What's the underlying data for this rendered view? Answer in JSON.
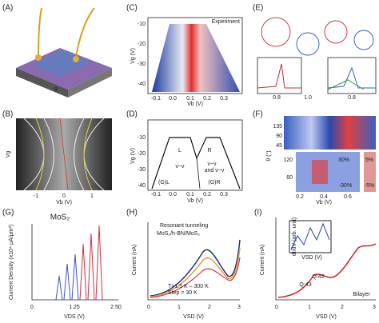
{
  "panels": [
    {
      "label": "(A)",
      "texts": [
        "θ"
      ]
    },
    {
      "label": "(B)",
      "texts": [
        "Vg",
        "-1",
        "0",
        "1",
        "Vb (V)"
      ]
    },
    {
      "label": "(C)",
      "texts": [
        "Experiment",
        "-10",
        "-20",
        "-30",
        "-40",
        "-0.1",
        "0.0",
        "0.1",
        "0.2",
        "0.3",
        "Vg (V)",
        "Vb (V)"
      ]
    },
    {
      "label": "(D)",
      "texts": [
        "-10",
        "-20",
        "-30",
        "-40",
        "-0.1",
        "0.0",
        "0.1",
        "0.2",
        "0.3",
        "Vg (V)",
        "Vb (V)",
        "L",
        "R",
        "ν−ν",
        "ν−ν",
        "and ν−ν",
        "(G)L",
        "(G)R"
      ]
    },
    {
      "label": "(E)",
      "texts": [
        "0.8",
        "1.0",
        "0.8"
      ]
    },
    {
      "label": "(F)",
      "texts": [
        "135",
        "90",
        "45",
        "120",
        "60",
        "30%",
        "-30%",
        "5%",
        "-5%",
        "0.2",
        "0.4",
        "0.6",
        "Vb (V)",
        "θ (°)"
      ]
    },
    {
      "label": "(G)",
      "texts": [
        "MoS₂",
        "Current Density (x10⁴ μA/μm²)",
        "VDS (V)",
        "0",
        "1.25",
        "2.50"
      ]
    },
    {
      "label": "(H)",
      "texts": [
        "Resonant tunneling",
        "MoS₂/h-BN/MoS₂",
        "T=1.5 K – 300 K",
        "Step = 30 K",
        "Current (nA)",
        "VSD (V)",
        "0",
        "1",
        "2",
        "3"
      ]
    },
    {
      "label": "(I)",
      "texts": [
        "Current (nA)",
        "VSD (V)",
        "Bilayer",
        "Q:43",
        "Q:42",
        "0",
        "1",
        "2",
        "3",
        "dI/dV (arb. unit)",
        "VSD (V)"
      ]
    }
  ]
}
